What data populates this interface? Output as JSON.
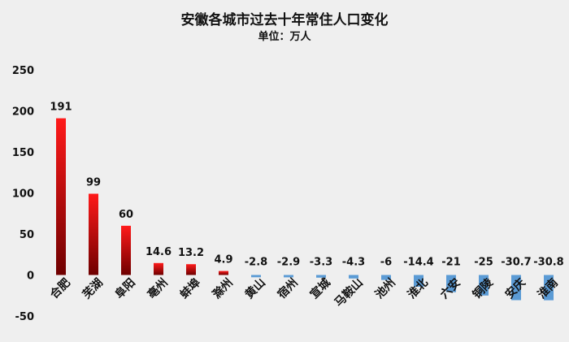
{
  "chart_data": {
    "type": "bar",
    "title": "安徽各城市过去十年常住人口变化",
    "subtitle": "单位：万人",
    "xlabel": "",
    "ylabel": "",
    "ylim": [
      -50,
      250
    ],
    "yticks": [
      250,
      200,
      150,
      100,
      50,
      0,
      -50
    ],
    "grid": false,
    "categories": [
      "合肥",
      "芜湖",
      "阜阳",
      "亳州",
      "蚌埠",
      "滁州",
      "黄山",
      "宿州",
      "宣城",
      "马鞍山",
      "池州",
      "淮北",
      "六安",
      "铜陵",
      "安庆",
      "淮南"
    ],
    "values": [
      191,
      99,
      60,
      14.6,
      13.2,
      4.9,
      -2.8,
      -2.9,
      -3.3,
      -4.3,
      -6,
      -14.4,
      -21,
      -25,
      -30.7,
      -30.8
    ],
    "data_labels": [
      "191",
      "99",
      "60",
      "14.6",
      "13.2",
      "4.9",
      "-2.8",
      "-2.9",
      "-3.3",
      "-4.3",
      "-6",
      "-14.4",
      "-21",
      "-25",
      "-30.7",
      "-30.8"
    ],
    "colors": {
      "positive_top": "#ff1a1a",
      "positive_bottom": "#6e0000",
      "negative": "#5b9bd5",
      "background": "#efefef"
    }
  }
}
